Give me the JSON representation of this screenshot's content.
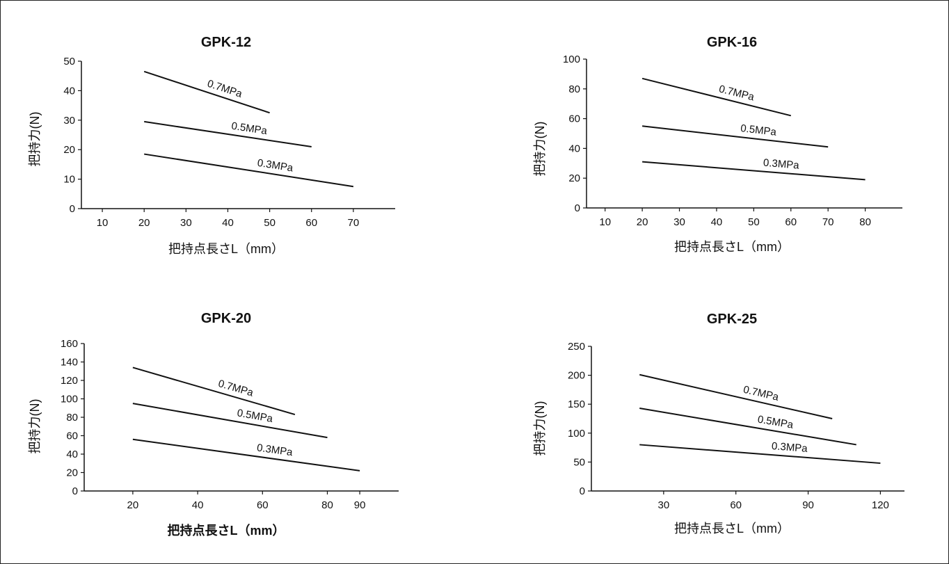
{
  "chart_data": [
    {
      "type": "line",
      "title": "GPK-12",
      "xlabel": "把持点長さL（mm）",
      "ylabel": "把持力(N)",
      "xticks": [
        10,
        20,
        30,
        40,
        50,
        60,
        70
      ],
      "yticks": [
        0,
        10,
        20,
        30,
        40,
        50
      ],
      "xlim": [
        5,
        80
      ],
      "ylim": [
        0,
        50
      ],
      "series": [
        {
          "name": "0.7MPa",
          "x": [
            20,
            50
          ],
          "y": [
            46.5,
            32.5
          ]
        },
        {
          "name": "0.5MPa",
          "x": [
            20,
            60
          ],
          "y": [
            29.5,
            21
          ]
        },
        {
          "name": "0.3MPa",
          "x": [
            20,
            70
          ],
          "y": [
            18.5,
            7.5
          ]
        }
      ]
    },
    {
      "type": "line",
      "title": "GPK-16",
      "xlabel": "把持点長さL（mm）",
      "ylabel": "把持力(N)",
      "xticks": [
        10,
        20,
        30,
        40,
        50,
        60,
        70,
        80
      ],
      "yticks": [
        0,
        20,
        40,
        60,
        80,
        100
      ],
      "xlim": [
        5,
        90
      ],
      "ylim": [
        0,
        100
      ],
      "series": [
        {
          "name": "0.7MPa",
          "x": [
            20,
            60
          ],
          "y": [
            87,
            62
          ]
        },
        {
          "name": "0.5MPa",
          "x": [
            20,
            70
          ],
          "y": [
            55,
            41
          ]
        },
        {
          "name": "0.3MPa",
          "x": [
            20,
            80
          ],
          "y": [
            31,
            19
          ]
        }
      ]
    },
    {
      "type": "line",
      "title": "GPK-20",
      "xlabel": "把持点長さL（mm）",
      "ylabel": "把持力(N)",
      "xticks": [
        20,
        40,
        60,
        80,
        90
      ],
      "yticks": [
        0,
        20,
        40,
        60,
        80,
        100,
        120,
        140,
        160
      ],
      "xlim": [
        5,
        102
      ],
      "ylim": [
        0,
        160
      ],
      "series": [
        {
          "name": "0.7MPa",
          "x": [
            20,
            70
          ],
          "y": [
            134,
            83
          ]
        },
        {
          "name": "0.5MPa",
          "x": [
            20,
            80
          ],
          "y": [
            95,
            58
          ]
        },
        {
          "name": "0.3MPa",
          "x": [
            20,
            90
          ],
          "y": [
            56,
            22
          ]
        }
      ]
    },
    {
      "type": "line",
      "title": "GPK-25",
      "xlabel": "把持点長さL（mm）",
      "ylabel": "把持力(N)",
      "xticks": [
        30,
        60,
        90,
        120
      ],
      "yticks": [
        0,
        50,
        100,
        150,
        200,
        250
      ],
      "xlim": [
        0,
        130
      ],
      "ylim": [
        0,
        250
      ],
      "series": [
        {
          "name": "0.7MPa",
          "x": [
            20,
            100
          ],
          "y": [
            201,
            125
          ]
        },
        {
          "name": "0.5MPa",
          "x": [
            20,
            110
          ],
          "y": [
            143,
            80
          ]
        },
        {
          "name": "0.3MPa",
          "x": [
            20,
            120
          ],
          "y": [
            80,
            48
          ]
        }
      ]
    }
  ]
}
